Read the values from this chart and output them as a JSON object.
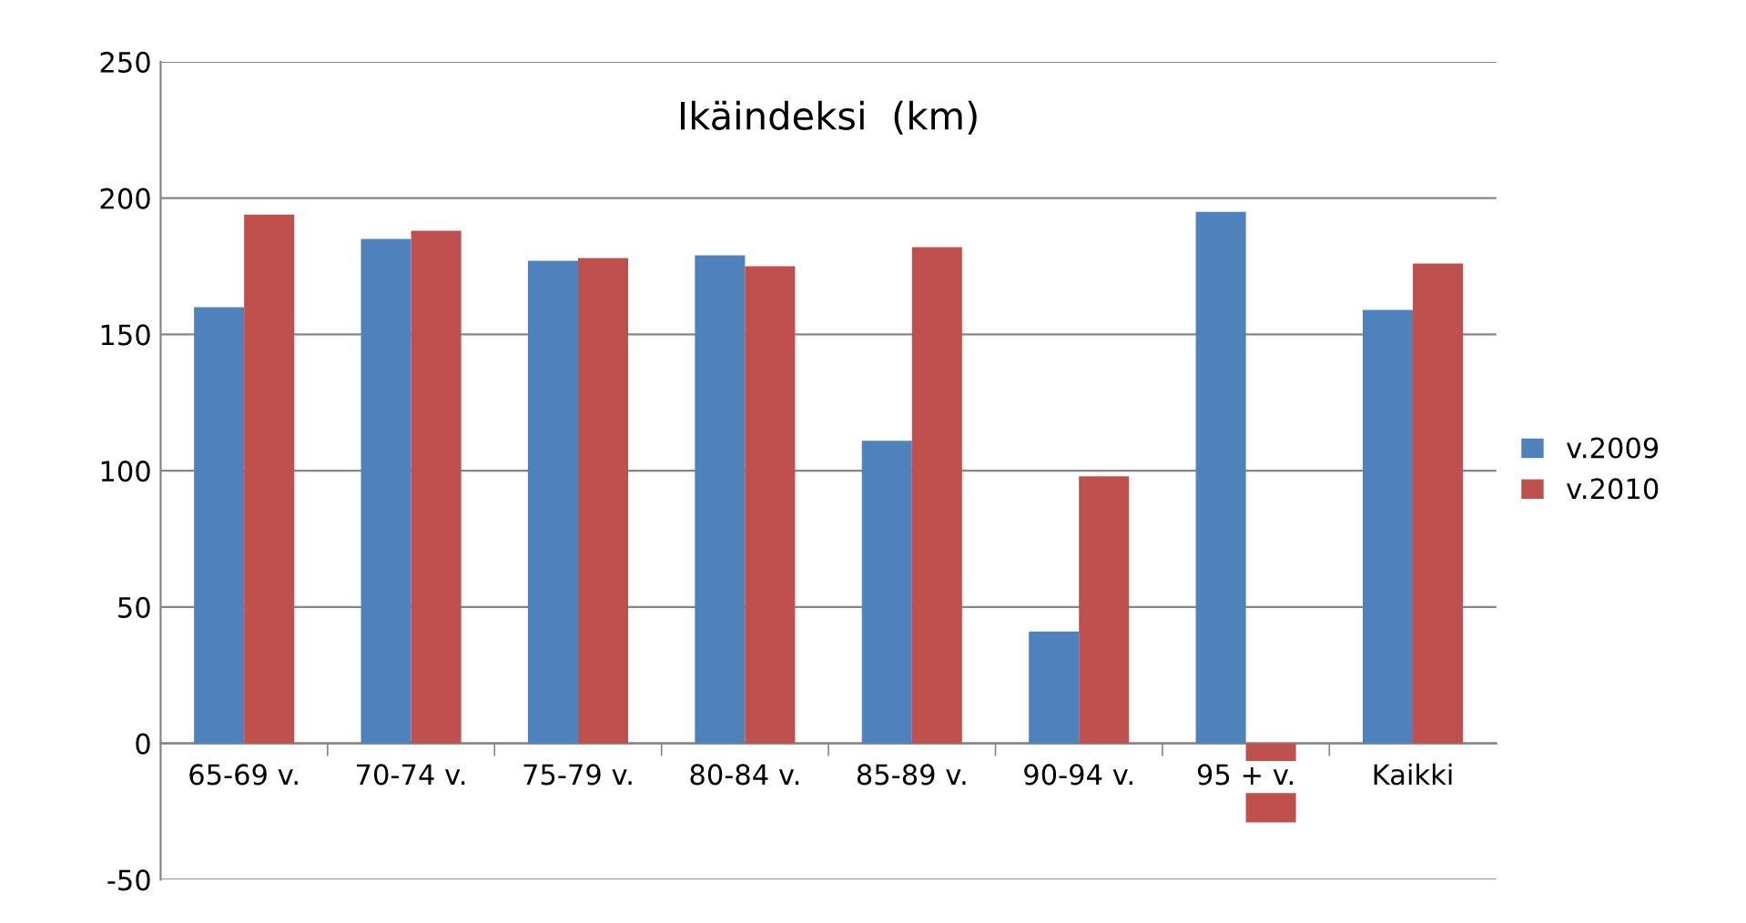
{
  "chart_data": {
    "type": "bar",
    "title": "Ikäindeksi  (km)",
    "categories": [
      "65-69 v.",
      "70-74 v.",
      "75-79 v.",
      "80-84 v.",
      "85-89 v.",
      "90-94 v.",
      "95 + v.",
      "Kaikki"
    ],
    "series": [
      {
        "name": "v.2009",
        "color": "#4f81bd",
        "values": [
          160,
          185,
          177,
          179,
          111,
          41,
          195,
          159
        ]
      },
      {
        "name": "v.2010",
        "color": "#c0504d",
        "values": [
          194,
          188,
          178,
          175,
          182,
          98,
          -29,
          176
        ]
      }
    ],
    "ylim": [
      -50,
      250
    ],
    "yticks": [
      -50,
      0,
      50,
      100,
      150,
      200,
      250
    ],
    "grid": "y",
    "legend": "right"
  }
}
